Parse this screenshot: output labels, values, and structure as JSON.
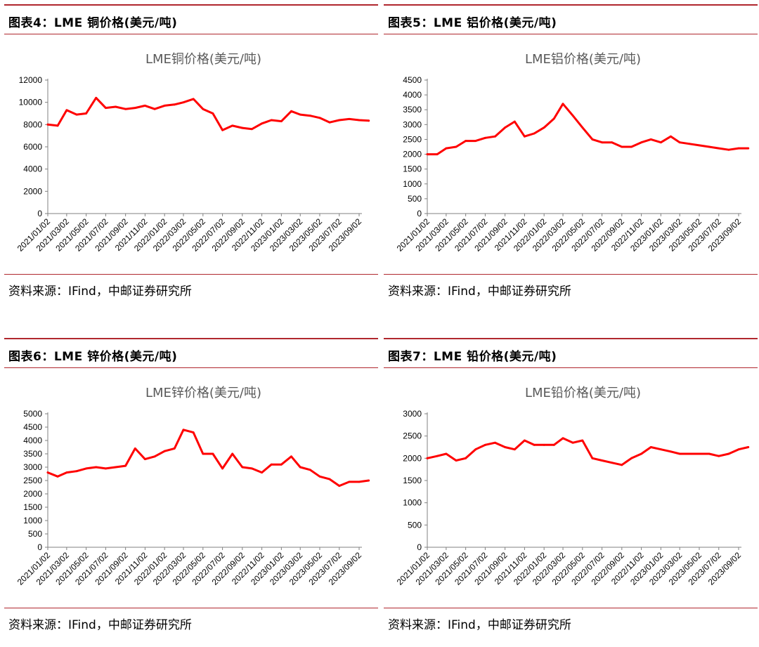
{
  "panels": {
    "p4": {
      "fig_title": "图表4：LME 铜价格(美元/吨)",
      "source": "资料来源：IFind，中邮证券研究所"
    },
    "p5": {
      "fig_title": "图表5：LME 铝价格(美元/吨)",
      "source": "资料来源：IFind，中邮证券研究所"
    },
    "p6": {
      "fig_title": "图表6：LME 锌价格(美元/吨)",
      "source": "资料来源：IFind，中邮证券研究所"
    },
    "p7": {
      "fig_title": "图表7：LME 铅价格(美元/吨)",
      "source": "资料来源：IFind，中邮证券研究所"
    }
  },
  "chart_data": [
    {
      "id": "p4",
      "type": "line",
      "title": "LME铜价格(美元/吨)",
      "line_color": "#ff0000",
      "x_ticks": [
        "2021/01/02",
        "2021/03/02",
        "2021/05/02",
        "2021/07/02",
        "2021/09/02",
        "2021/11/02",
        "2022/01/02",
        "2022/03/02",
        "2022/05/02",
        "2022/07/02",
        "2022/09/02",
        "2022/11/02",
        "2023/01/02",
        "2023/03/02",
        "2023/05/02",
        "2023/07/02",
        "2023/09/02"
      ],
      "ylim": [
        0,
        12000
      ],
      "y_ticks": [
        0,
        2000,
        4000,
        6000,
        8000,
        10000,
        12000
      ],
      "x": [
        "2021/01/02",
        "2021/02/02",
        "2021/03/02",
        "2021/04/02",
        "2021/05/02",
        "2021/06/02",
        "2021/07/02",
        "2021/08/02",
        "2021/09/02",
        "2021/10/02",
        "2021/11/02",
        "2021/12/02",
        "2022/01/02",
        "2022/02/02",
        "2022/03/02",
        "2022/04/02",
        "2022/05/02",
        "2022/06/02",
        "2022/07/02",
        "2022/08/02",
        "2022/09/02",
        "2022/10/02",
        "2022/11/02",
        "2022/12/02",
        "2023/01/02",
        "2023/02/02",
        "2023/03/02",
        "2023/04/02",
        "2023/05/02",
        "2023/06/02",
        "2023/07/02",
        "2023/08/02",
        "2023/09/02",
        "2023/10/02"
      ],
      "values": [
        8000,
        7900,
        9300,
        8900,
        9000,
        10400,
        9500,
        9600,
        9400,
        9500,
        9700,
        9400,
        9700,
        9800,
        10000,
        10300,
        9400,
        9000,
        7500,
        7900,
        7700,
        7600,
        8100,
        8400,
        8300,
        9200,
        8900,
        8800,
        8600,
        8200,
        8400,
        8500,
        8400,
        8350
      ]
    },
    {
      "id": "p5",
      "type": "line",
      "title": "LME铝价格(美元/吨)",
      "line_color": "#ff0000",
      "x_ticks": [
        "2021/01/02",
        "2021/03/02",
        "2021/05/02",
        "2021/07/02",
        "2021/09/02",
        "2021/11/02",
        "2022/01/02",
        "2022/03/02",
        "2022/05/02",
        "2022/07/02",
        "2022/09/02",
        "2022/11/02",
        "2023/01/02",
        "2023/03/02",
        "2023/05/02",
        "2023/07/02",
        "2023/09/02"
      ],
      "ylim": [
        0,
        4500
      ],
      "y_ticks": [
        0,
        500,
        1000,
        1500,
        2000,
        2500,
        3000,
        3500,
        4000,
        4500
      ],
      "x": [
        "2021/01/02",
        "2021/02/02",
        "2021/03/02",
        "2021/04/02",
        "2021/05/02",
        "2021/06/02",
        "2021/07/02",
        "2021/08/02",
        "2021/09/02",
        "2021/10/02",
        "2021/11/02",
        "2021/12/02",
        "2022/01/02",
        "2022/02/02",
        "2022/03/02",
        "2022/04/02",
        "2022/05/02",
        "2022/06/02",
        "2022/07/02",
        "2022/08/02",
        "2022/09/02",
        "2022/10/02",
        "2022/11/02",
        "2022/12/02",
        "2023/01/02",
        "2023/02/02",
        "2023/03/02",
        "2023/04/02",
        "2023/05/02",
        "2023/06/02",
        "2023/07/02",
        "2023/08/02",
        "2023/09/02",
        "2023/10/02"
      ],
      "values": [
        2000,
        2000,
        2200,
        2250,
        2450,
        2450,
        2550,
        2600,
        2900,
        3100,
        2600,
        2700,
        2900,
        3200,
        3700,
        3300,
        2900,
        2500,
        2400,
        2400,
        2250,
        2250,
        2400,
        2500,
        2400,
        2600,
        2400,
        2350,
        2300,
        2250,
        2200,
        2150,
        2200,
        2200
      ]
    },
    {
      "id": "p6",
      "type": "line",
      "title": "LME锌价格(美元/吨)",
      "line_color": "#ff0000",
      "x_ticks": [
        "2021/01/02",
        "2021/03/02",
        "2021/05/02",
        "2021/07/02",
        "2021/09/02",
        "2021/11/02",
        "2022/01/02",
        "2022/03/02",
        "2022/05/02",
        "2022/07/02",
        "2022/09/02",
        "2022/11/02",
        "2023/01/02",
        "2023/03/02",
        "2023/05/02",
        "2023/07/02",
        "2023/09/02"
      ],
      "ylim": [
        0,
        5000
      ],
      "y_ticks": [
        0,
        500,
        1000,
        1500,
        2000,
        2500,
        3000,
        3500,
        4000,
        4500,
        5000
      ],
      "x": [
        "2021/01/02",
        "2021/02/02",
        "2021/03/02",
        "2021/04/02",
        "2021/05/02",
        "2021/06/02",
        "2021/07/02",
        "2021/08/02",
        "2021/09/02",
        "2021/10/02",
        "2021/11/02",
        "2021/12/02",
        "2022/01/02",
        "2022/02/02",
        "2022/03/02",
        "2022/04/02",
        "2022/05/02",
        "2022/06/02",
        "2022/07/02",
        "2022/08/02",
        "2022/09/02",
        "2022/10/02",
        "2022/11/02",
        "2022/12/02",
        "2023/01/02",
        "2023/02/02",
        "2023/03/02",
        "2023/04/02",
        "2023/05/02",
        "2023/06/02",
        "2023/07/02",
        "2023/08/02",
        "2023/09/02",
        "2023/10/02"
      ],
      "values": [
        2800,
        2650,
        2800,
        2850,
        2950,
        3000,
        2950,
        3000,
        3050,
        3700,
        3300,
        3400,
        3600,
        3700,
        4400,
        4300,
        3500,
        3500,
        2950,
        3500,
        3000,
        2950,
        2800,
        3100,
        3100,
        3400,
        3000,
        2900,
        2650,
        2550,
        2300,
        2450,
        2450,
        2500
      ]
    },
    {
      "id": "p7",
      "type": "line",
      "title": "LME铅价格(美元/吨)",
      "line_color": "#ff0000",
      "x_ticks": [
        "2021/01/02",
        "2021/03/02",
        "2021/05/02",
        "2021/07/02",
        "2021/09/02",
        "2021/11/02",
        "2022/01/02",
        "2022/03/02",
        "2022/05/02",
        "2022/07/02",
        "2022/09/02",
        "2022/11/02",
        "2023/01/02",
        "2023/03/02",
        "2023/05/02",
        "2023/07/02",
        "2023/09/02"
      ],
      "ylim": [
        0,
        3000
      ],
      "y_ticks": [
        0,
        500,
        1000,
        1500,
        2000,
        2500,
        3000
      ],
      "x": [
        "2021/01/02",
        "2021/02/02",
        "2021/03/02",
        "2021/04/02",
        "2021/05/02",
        "2021/06/02",
        "2021/07/02",
        "2021/08/02",
        "2021/09/02",
        "2021/10/02",
        "2021/11/02",
        "2021/12/02",
        "2022/01/02",
        "2022/02/02",
        "2022/03/02",
        "2022/04/02",
        "2022/05/02",
        "2022/06/02",
        "2022/07/02",
        "2022/08/02",
        "2022/09/02",
        "2022/10/02",
        "2022/11/02",
        "2022/12/02",
        "2023/01/02",
        "2023/02/02",
        "2023/03/02",
        "2023/04/02",
        "2023/05/02",
        "2023/06/02",
        "2023/07/02",
        "2023/08/02",
        "2023/09/02",
        "2023/10/02"
      ],
      "values": [
        2000,
        2050,
        2100,
        1950,
        2000,
        2200,
        2300,
        2350,
        2250,
        2200,
        2400,
        2300,
        2300,
        2300,
        2450,
        2350,
        2400,
        2000,
        1950,
        1900,
        1850,
        2000,
        2100,
        2250,
        2200,
        2150,
        2100,
        2100,
        2100,
        2100,
        2050,
        2100,
        2200,
        2250
      ]
    }
  ]
}
